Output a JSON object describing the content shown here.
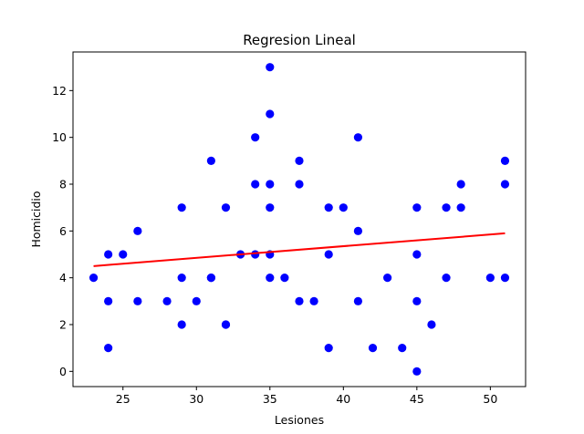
{
  "chart_data": {
    "type": "scatter",
    "title": "Regresion Lineal",
    "xlabel": "Lesiones",
    "ylabel": "Homicidio",
    "xlim": [
      21.6,
      52.4
    ],
    "ylim": [
      -0.65,
      13.65
    ],
    "xticks": [
      25,
      30,
      35,
      40,
      45,
      50
    ],
    "yticks": [
      0,
      2,
      4,
      6,
      8,
      10,
      12
    ],
    "grid": false,
    "colors": {
      "points": "#0000ff",
      "regression": "#ff0000"
    },
    "points": [
      {
        "x": 23,
        "y": 4
      },
      {
        "x": 24,
        "y": 5
      },
      {
        "x": 24,
        "y": 3
      },
      {
        "x": 24,
        "y": 1
      },
      {
        "x": 25,
        "y": 5
      },
      {
        "x": 26,
        "y": 6
      },
      {
        "x": 26,
        "y": 3
      },
      {
        "x": 28,
        "y": 3
      },
      {
        "x": 29,
        "y": 7
      },
      {
        "x": 29,
        "y": 4
      },
      {
        "x": 29,
        "y": 2
      },
      {
        "x": 30,
        "y": 3
      },
      {
        "x": 31,
        "y": 9
      },
      {
        "x": 31,
        "y": 4
      },
      {
        "x": 31,
        "y": 4
      },
      {
        "x": 32,
        "y": 7
      },
      {
        "x": 32,
        "y": 2
      },
      {
        "x": 32,
        "y": 2
      },
      {
        "x": 33,
        "y": 5
      },
      {
        "x": 34,
        "y": 10
      },
      {
        "x": 34,
        "y": 8
      },
      {
        "x": 34,
        "y": 5
      },
      {
        "x": 35,
        "y": 13
      },
      {
        "x": 35,
        "y": 11
      },
      {
        "x": 35,
        "y": 8
      },
      {
        "x": 35,
        "y": 7
      },
      {
        "x": 35,
        "y": 5
      },
      {
        "x": 35,
        "y": 4
      },
      {
        "x": 36,
        "y": 4
      },
      {
        "x": 37,
        "y": 9
      },
      {
        "x": 37,
        "y": 8
      },
      {
        "x": 37,
        "y": 3
      },
      {
        "x": 38,
        "y": 3
      },
      {
        "x": 39,
        "y": 7
      },
      {
        "x": 39,
        "y": 5
      },
      {
        "x": 39,
        "y": 1
      },
      {
        "x": 40,
        "y": 7
      },
      {
        "x": 41,
        "y": 10
      },
      {
        "x": 41,
        "y": 6
      },
      {
        "x": 41,
        "y": 3
      },
      {
        "x": 42,
        "y": 1
      },
      {
        "x": 43,
        "y": 4
      },
      {
        "x": 44,
        "y": 1
      },
      {
        "x": 45,
        "y": 7
      },
      {
        "x": 45,
        "y": 5
      },
      {
        "x": 45,
        "y": 3
      },
      {
        "x": 45,
        "y": 0
      },
      {
        "x": 46,
        "y": 2
      },
      {
        "x": 47,
        "y": 7
      },
      {
        "x": 47,
        "y": 4
      },
      {
        "x": 48,
        "y": 8
      },
      {
        "x": 48,
        "y": 7
      },
      {
        "x": 50,
        "y": 4
      },
      {
        "x": 51,
        "y": 9
      },
      {
        "x": 51,
        "y": 8
      },
      {
        "x": 51,
        "y": 4
      }
    ],
    "regression_line": {
      "x": [
        23,
        51
      ],
      "y": [
        4.5,
        5.9
      ]
    }
  }
}
